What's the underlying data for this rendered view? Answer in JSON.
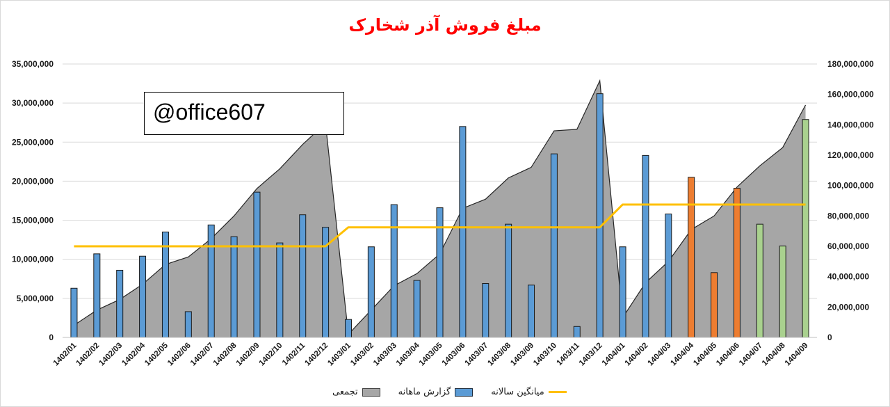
{
  "title": "مبلغ فروش آذر شخارک",
  "watermark": "@office607",
  "legend": {
    "area": "تجمعی",
    "bars": "گزارش ماهانه",
    "line": "میانگین سالانه"
  },
  "colors": {
    "area": "#a6a6a6",
    "area_stroke": "#262626",
    "bar_blue": "#5b9bd5",
    "bar_orange": "#ed7d31",
    "bar_green": "#a9d18e",
    "bar_stroke": "#1a1a1a",
    "line": "#ffc000",
    "grid": "#d9d9d9"
  },
  "chart_data": {
    "type": "bar",
    "grid": true,
    "legend_position": "bottom",
    "categories": [
      "1402/01",
      "1402/02",
      "1402/03",
      "1402/04",
      "1402/05",
      "1402/06",
      "1402/07",
      "1402/08",
      "1402/09",
      "1402/10",
      "1402/11",
      "1402/12",
      "1403/01",
      "1403/02",
      "1403/03",
      "1403/04",
      "1403/05",
      "1403/06",
      "1403/07",
      "1403/08",
      "1403/09",
      "1403/10",
      "1403/11",
      "1403/12",
      "1404/01",
      "1404/02",
      "1404/03",
      "1404/04",
      "1404/05",
      "1404/06",
      "1404/07",
      "1404/08",
      "1404/09"
    ],
    "y_left": {
      "lim": [
        0,
        35000000
      ],
      "ticks": [
        "0",
        "5,000,000",
        "10,000,000",
        "15,000,000",
        "20,000,000",
        "25,000,000",
        "30,000,000",
        "35,000,000"
      ]
    },
    "y_right": {
      "lim": [
        0,
        180000000
      ],
      "ticks": [
        "0",
        "20,000,000",
        "40,000,000",
        "60,000,000",
        "80,000,000",
        "100,000,000",
        "120,000,000",
        "140,000,000",
        "160,000,000",
        "180,000,000"
      ]
    },
    "series": [
      {
        "name": "تجمعی",
        "kind": "area",
        "axis": "right",
        "values": [
          8000000,
          18000000,
          25000000,
          35000000,
          48000000,
          53000000,
          65000000,
          80000000,
          98000000,
          111000000,
          127000000,
          141000000,
          2000000,
          18000000,
          34000000,
          42000000,
          55000000,
          85000000,
          91000000,
          105000000,
          112000000,
          136000000,
          137000000,
          169000000,
          13000000,
          36000000,
          50000000,
          71000000,
          80000000,
          99000000,
          113000000,
          125000000,
          153000000
        ]
      },
      {
        "name": "گزارش ماهانه",
        "kind": "bar",
        "axis": "left",
        "values": [
          6300000,
          10700000,
          8600000,
          10400000,
          13500000,
          3300000,
          14400000,
          12900000,
          18600000,
          12100000,
          15700000,
          14100000,
          2300000,
          11600000,
          17000000,
          7300000,
          16600000,
          27000000,
          6900000,
          14500000,
          6700000,
          23500000,
          1400000,
          31200000,
          11600000,
          23300000,
          15800000,
          20500000,
          8300000,
          19100000,
          14500000,
          11700000,
          27900000
        ],
        "colors": [
          "blue",
          "blue",
          "blue",
          "blue",
          "blue",
          "blue",
          "blue",
          "blue",
          "blue",
          "blue",
          "blue",
          "blue",
          "blue",
          "blue",
          "blue",
          "blue",
          "blue",
          "blue",
          "blue",
          "blue",
          "blue",
          "blue",
          "blue",
          "blue",
          "blue",
          "blue",
          "blue",
          "orange",
          "orange",
          "orange",
          "green",
          "green",
          "green"
        ]
      },
      {
        "name": "میانگین سالانه",
        "kind": "line",
        "axis": "right",
        "values": [
          60000000,
          60000000,
          60000000,
          60000000,
          60000000,
          60000000,
          60000000,
          60000000,
          60000000,
          60000000,
          60000000,
          60000000,
          72500000,
          72500000,
          72500000,
          72500000,
          72500000,
          72500000,
          72500000,
          72500000,
          72500000,
          72500000,
          72500000,
          72500000,
          87500000,
          87500000,
          87500000,
          87500000,
          87500000,
          87500000,
          87500000,
          87500000,
          87500000
        ]
      }
    ]
  }
}
